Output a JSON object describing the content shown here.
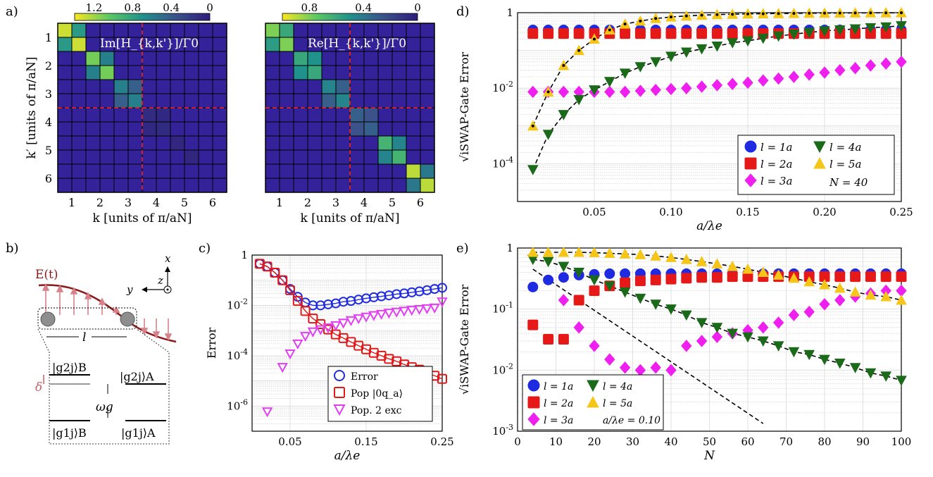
{
  "panels": {
    "a": "a)",
    "b": "b)",
    "c": "c)",
    "d": "d)",
    "e": "e)"
  },
  "chart_data": [
    {
      "id": "a-left",
      "type": "heatmap",
      "title": "Im[H_{k,k'}]/Γ0",
      "xlabel": "k [units of π/aN]",
      "ylabel": "k′ [units of π/aN]",
      "x_ticks": [
        "1",
        "2",
        "3",
        "4",
        "5",
        "6"
      ],
      "y_ticks": [
        "1",
        "2",
        "3",
        "4",
        "5",
        "6"
      ],
      "colorbar": {
        "ticks": [
          "1.2",
          "0.8",
          "0.4",
          "0"
        ],
        "range": [
          0,
          1.4
        ]
      },
      "n": 12,
      "default_value": 0.02,
      "cells": [
        {
          "r": 0,
          "c": 0,
          "v": 1.3
        },
        {
          "r": 0,
          "c": 1,
          "v": 0.75
        },
        {
          "r": 1,
          "c": 0,
          "v": 0.75
        },
        {
          "r": 1,
          "c": 1,
          "v": 1.3
        },
        {
          "r": 2,
          "c": 2,
          "v": 1.1
        },
        {
          "r": 2,
          "c": 3,
          "v": 0.6
        },
        {
          "r": 3,
          "c": 2,
          "v": 0.6
        },
        {
          "r": 3,
          "c": 3,
          "v": 1.1
        },
        {
          "r": 4,
          "c": 4,
          "v": 0.6
        },
        {
          "r": 4,
          "c": 5,
          "v": 0.42
        },
        {
          "r": 5,
          "c": 4,
          "v": 0.42
        },
        {
          "r": 5,
          "c": 5,
          "v": 0.6
        },
        {
          "r": 6,
          "c": 6,
          "v": 0.1
        },
        {
          "r": 6,
          "c": 7,
          "v": 0.08
        },
        {
          "r": 7,
          "c": 6,
          "v": 0.08
        },
        {
          "r": 7,
          "c": 7,
          "v": 0.1
        },
        {
          "r": 8,
          "c": 8,
          "v": 0.07
        },
        {
          "r": 9,
          "c": 9,
          "v": 0.07
        },
        {
          "r": 10,
          "c": 10,
          "v": 0.05
        },
        {
          "r": 11,
          "c": 11,
          "v": 0.05
        }
      ]
    },
    {
      "id": "a-right",
      "type": "heatmap",
      "title": "Re[H_{k,k'}]/Γ0",
      "xlabel": "k [units of π/aN]",
      "ylabel": "",
      "x_ticks": [
        "1",
        "2",
        "3",
        "4",
        "5",
        "6"
      ],
      "y_ticks": [],
      "colorbar": {
        "ticks": [
          "0.8",
          "0.4",
          "0"
        ],
        "range": [
          0,
          1.0
        ]
      },
      "n": 12,
      "default_value": 0.02,
      "cells": [
        {
          "r": 0,
          "c": 0,
          "v": 0.8
        },
        {
          "r": 0,
          "c": 1,
          "v": 0.6
        },
        {
          "r": 1,
          "c": 0,
          "v": 0.55
        },
        {
          "r": 1,
          "c": 1,
          "v": 0.8
        },
        {
          "r": 2,
          "c": 2,
          "v": 0.6
        },
        {
          "r": 2,
          "c": 3,
          "v": 0.5
        },
        {
          "r": 3,
          "c": 2,
          "v": 0.5
        },
        {
          "r": 3,
          "c": 3,
          "v": 0.6
        },
        {
          "r": 4,
          "c": 4,
          "v": 0.45
        },
        {
          "r": 4,
          "c": 5,
          "v": 0.3
        },
        {
          "r": 5,
          "c": 4,
          "v": 0.3
        },
        {
          "r": 5,
          "c": 5,
          "v": 0.45
        },
        {
          "r": 6,
          "c": 6,
          "v": 0.3
        },
        {
          "r": 6,
          "c": 7,
          "v": 0.25
        },
        {
          "r": 7,
          "c": 6,
          "v": 0.25
        },
        {
          "r": 7,
          "c": 7,
          "v": 0.3
        },
        {
          "r": 8,
          "c": 8,
          "v": 0.65
        },
        {
          "r": 8,
          "c": 9,
          "v": 0.45
        },
        {
          "r": 9,
          "c": 8,
          "v": 0.45
        },
        {
          "r": 9,
          "c": 9,
          "v": 0.65
        },
        {
          "r": 10,
          "c": 10,
          "v": 0.9
        },
        {
          "r": 10,
          "c": 11,
          "v": 0.4
        },
        {
          "r": 11,
          "c": 10,
          "v": 0.4
        },
        {
          "r": 11,
          "c": 11,
          "v": 0.9
        }
      ]
    },
    {
      "id": "c",
      "type": "line",
      "ylabel": "Error",
      "xlabel": "a/λe",
      "x_ticks": [
        "0.05",
        "0.15",
        "0.25"
      ],
      "y_ticks": [
        "1",
        "10^-2",
        "10^-4",
        "10^-6"
      ],
      "xlim": [
        0,
        0.25
      ],
      "ylim_log10": [
        -7,
        0
      ],
      "x": [
        0.01,
        0.02,
        0.03,
        0.04,
        0.05,
        0.06,
        0.07,
        0.08,
        0.09,
        0.1,
        0.11,
        0.12,
        0.13,
        0.14,
        0.15,
        0.16,
        0.17,
        0.18,
        0.19,
        0.2,
        0.21,
        0.22,
        0.23,
        0.24,
        0.25
      ],
      "series": [
        {
          "name": "Error",
          "values": [
            0.45,
            0.35,
            0.2,
            0.1,
            0.045,
            0.022,
            0.013,
            0.01,
            0.01,
            0.011,
            0.012,
            0.014,
            0.015,
            0.017,
            0.019,
            0.021,
            0.023,
            0.025,
            0.028,
            0.03,
            0.033,
            0.036,
            0.04,
            0.045,
            0.05
          ]
        },
        {
          "name": "Pop |0q_a⟩",
          "values": [
            0.45,
            0.35,
            0.2,
            0.1,
            0.04,
            0.015,
            0.006,
            0.003,
            0.0018,
            0.0011,
            0.0007,
            0.0005,
            0.00035,
            0.00025,
            0.00018,
            0.00013,
            0.0001,
            7.5e-05,
            6e-05,
            4.5e-05,
            3.5e-05,
            2.8e-05,
            2.1e-05,
            1.6e-05,
            1.2e-05
          ]
        },
        {
          "name": "Pop. 2 exc",
          "values": [
            null,
            6e-07,
            null,
            3.5e-05,
            0.00012,
            0.0003,
            0.0006,
            0.0009,
            0.0011,
            0.0013,
            0.0016,
            0.002,
            0.0025,
            0.003,
            0.0035,
            0.004,
            0.0045,
            0.005,
            0.0055,
            0.006,
            0.0065,
            0.007,
            0.0075,
            0.008,
            0.014
          ]
        }
      ],
      "legend": [
        "Error",
        "Pop |0q_a⟩",
        "Pop. 2 exc"
      ]
    },
    {
      "id": "d",
      "type": "scatter",
      "ylabel": "√iSWAP-Gate Error",
      "xlabel": "a/λe",
      "x_ticks": [
        "0.05",
        "0.10",
        "0.15",
        "0.20",
        "0.25"
      ],
      "y_ticks": [
        "1",
        "10^-2",
        "10^-4"
      ],
      "xlim": [
        0,
        0.25
      ],
      "ylim_log10": [
        -5,
        0
      ],
      "x": [
        0.01,
        0.02,
        0.03,
        0.04,
        0.05,
        0.06,
        0.07,
        0.08,
        0.09,
        0.1,
        0.11,
        0.12,
        0.13,
        0.14,
        0.15,
        0.16,
        0.17,
        0.18,
        0.19,
        0.2,
        0.21,
        0.22,
        0.23,
        0.24,
        0.25
      ],
      "series": [
        {
          "name": "l = 1a",
          "values": [
            0.35,
            0.35,
            0.35,
            0.35,
            0.35,
            0.35,
            0.35,
            0.35,
            0.35,
            0.35,
            0.35,
            0.35,
            0.35,
            0.35,
            0.35,
            0.35,
            0.35,
            0.35,
            0.35,
            0.35,
            0.35,
            0.35,
            0.35,
            0.35,
            0.35
          ]
        },
        {
          "name": "l = 2a",
          "values": [
            0.28,
            0.28,
            0.28,
            0.28,
            0.28,
            0.28,
            0.28,
            0.28,
            0.28,
            0.28,
            0.28,
            0.28,
            0.28,
            0.28,
            0.28,
            0.28,
            0.28,
            0.28,
            0.28,
            0.28,
            0.28,
            0.28,
            0.28,
            0.28,
            0.28
          ]
        },
        {
          "name": "l = 3a",
          "values": [
            0.008,
            0.008,
            0.008,
            0.008,
            0.008,
            0.008,
            0.008,
            0.0085,
            0.009,
            0.0095,
            0.01,
            0.011,
            0.012,
            0.013,
            0.014,
            0.016,
            0.018,
            0.02,
            0.023,
            0.026,
            0.03,
            0.034,
            0.04,
            0.045,
            0.05
          ]
        },
        {
          "name": "l = 4a",
          "values": [
            7e-05,
            0.0006,
            0.002,
            0.005,
            0.009,
            0.015,
            0.025,
            0.037,
            0.05,
            0.07,
            0.09,
            0.11,
            0.13,
            0.16,
            0.18,
            0.21,
            0.24,
            0.27,
            0.3,
            0.33,
            0.35,
            0.37,
            0.4,
            0.42,
            0.45
          ]
        },
        {
          "name": "l = 5a",
          "values": [
            0.001,
            0.008,
            0.04,
            0.1,
            0.2,
            0.35,
            0.5,
            0.6,
            0.7,
            0.77,
            0.82,
            0.86,
            0.89,
            0.91,
            0.93,
            0.94,
            0.95,
            0.96,
            0.97,
            0.975,
            0.98,
            0.985,
            0.99,
            0.99,
            0.995
          ]
        }
      ],
      "legend": [
        "l = 1a",
        "l = 4a",
        "l = 2a",
        "l = 5a",
        "l = 3a",
        "N = 40"
      ]
    },
    {
      "id": "e",
      "type": "scatter",
      "ylabel": "√iSWAP-Gate Error",
      "xlabel": "N",
      "x_ticks": [
        "0",
        "10",
        "20",
        "30",
        "40",
        "50",
        "60",
        "70",
        "80",
        "90",
        "100"
      ],
      "y_ticks": [
        "1",
        "10^-1",
        "10^-2",
        "10^-3"
      ],
      "xlim": [
        0,
        100
      ],
      "ylim_log10": [
        -3,
        0
      ],
      "x": [
        4,
        8,
        12,
        16,
        20,
        24,
        28,
        32,
        36,
        40,
        44,
        48,
        52,
        56,
        60,
        64,
        68,
        72,
        76,
        80,
        84,
        88,
        92,
        96,
        100
      ],
      "series": [
        {
          "name": "l = 1a",
          "values": [
            0.23,
            0.3,
            0.33,
            0.36,
            0.37,
            0.38,
            0.38,
            0.38,
            0.38,
            0.38,
            0.38,
            0.38,
            0.38,
            0.38,
            0.38,
            0.38,
            0.38,
            0.38,
            0.38,
            0.38,
            0.38,
            0.38,
            0.38,
            0.38,
            0.38
          ]
        },
        {
          "name": "l = 2a",
          "values": [
            0.055,
            0.032,
            0.032,
            0.14,
            0.2,
            0.24,
            0.27,
            0.29,
            0.3,
            0.31,
            0.32,
            0.33,
            0.33,
            0.34,
            0.34,
            0.34,
            0.34,
            0.34,
            0.34,
            0.34,
            0.34,
            0.34,
            0.34,
            0.34,
            0.34
          ]
        },
        {
          "name": "l = 3a",
          "values": [
            null,
            null,
            0.14,
            0.05,
            0.025,
            0.015,
            0.011,
            0.01,
            0.011,
            0.01,
            0.025,
            0.03,
            0.035,
            0.04,
            0.045,
            0.05,
            0.06,
            0.08,
            0.09,
            0.12,
            0.14,
            0.16,
            0.18,
            0.2,
            0.2
          ]
        },
        {
          "name": "l = 4a",
          "values": [
            0.65,
            0.6,
            0.5,
            0.4,
            0.3,
            0.24,
            0.19,
            0.15,
            0.12,
            0.1,
            0.08,
            0.06,
            0.05,
            0.04,
            0.035,
            0.03,
            0.025,
            0.02,
            0.018,
            0.015,
            0.013,
            0.011,
            0.009,
            0.008,
            0.0068
          ]
        },
        {
          "name": "l = 5a",
          "values": [
            0.85,
            0.85,
            0.85,
            0.85,
            0.84,
            0.82,
            0.8,
            0.78,
            0.74,
            0.7,
            0.65,
            0.6,
            0.55,
            0.5,
            0.45,
            0.4,
            0.36,
            0.32,
            0.28,
            0.25,
            0.22,
            0.19,
            0.17,
            0.16,
            0.14
          ]
        }
      ],
      "legend": [
        "l = 1a",
        "l = 4a",
        "l = 2a",
        "l = 5a",
        "l = 3a",
        "a/λe = 0.10"
      ]
    }
  ],
  "schematic": {
    "field_label": "E(t)",
    "axis_x": "x",
    "axis_y": "y",
    "axis_z": "z",
    "spacing_label": "l",
    "level_g2B": "|g2j⟩B",
    "level_g2A": "|g2j⟩A",
    "level_g1B": "|g1j⟩B",
    "level_g1A": "|g1j⟩A",
    "delta": "δ",
    "omega": "ωg"
  }
}
